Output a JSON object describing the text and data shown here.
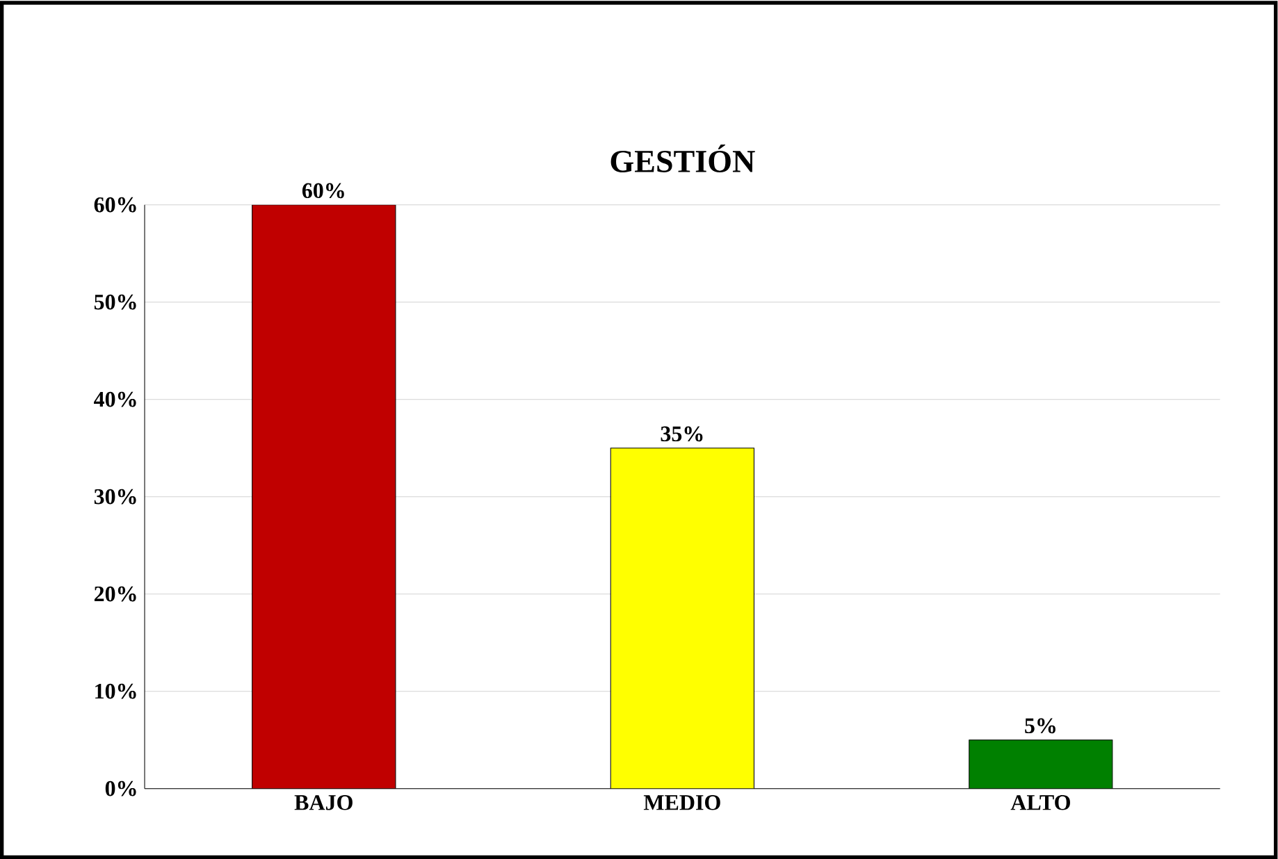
{
  "chart_data": {
    "type": "bar",
    "title": "GESTIÓN",
    "categories": [
      "BAJO",
      "MEDIO",
      "ALTO"
    ],
    "values": [
      60,
      35,
      5
    ],
    "colors": [
      "#c00000",
      "#ffff00",
      "#008000"
    ],
    "value_labels": [
      "60%",
      "35%",
      "5%"
    ],
    "ylim": [
      0,
      60
    ],
    "yticks": [
      {
        "value": 0,
        "label": "0%"
      },
      {
        "value": 10,
        "label": "10%"
      },
      {
        "value": 20,
        "label": "20%"
      },
      {
        "value": 30,
        "label": "30%"
      },
      {
        "value": 40,
        "label": "40%"
      },
      {
        "value": 50,
        "label": "50%"
      },
      {
        "value": 60,
        "label": "60%"
      }
    ],
    "grid": "y"
  }
}
